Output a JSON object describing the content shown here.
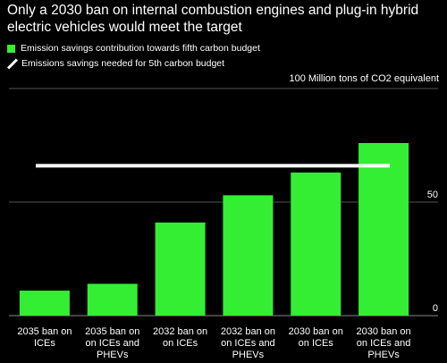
{
  "title": "Only a 2030 ban on internal combustion engines and plug-in hybrid electric vehicles would meet the target",
  "legend": {
    "bar_label": "Emission savings contribution towards fifth carbon budget",
    "line_label": "Emissions savings needed for 5th carbon budget"
  },
  "colors": {
    "bar": "#33ee33",
    "target_line": "#ffffff",
    "gridline": "#555555",
    "background": "#000000"
  },
  "chart_data": {
    "type": "bar",
    "ylabel": "100 Million tons of CO2 equivalent",
    "categories": [
      [
        "2035 ban on",
        "ICEs"
      ],
      [
        "2035 ban on",
        "on ICEs and",
        "PHEVs"
      ],
      [
        "2032 ban on",
        "on ICEs"
      ],
      [
        "2032 ban on",
        "on ICEs and",
        "PHEVs"
      ],
      [
        "2030 ban on",
        "on ICEs"
      ],
      [
        "2030 ban on",
        "on ICEs and",
        "PHEVs"
      ]
    ],
    "series": [
      {
        "name": "Emission savings contribution towards fifth carbon budget",
        "values": [
          11,
          14,
          41,
          53,
          63,
          76
        ]
      }
    ],
    "target": {
      "name": "Emissions savings needed for 5th carbon budget",
      "value": 66
    },
    "ylim": [
      0,
      100
    ],
    "yticks": [
      0,
      50,
      100
    ],
    "ytick_labels": [
      "0",
      "50",
      "100 Million tons of CO2 equivalent"
    ],
    "grid": true
  }
}
